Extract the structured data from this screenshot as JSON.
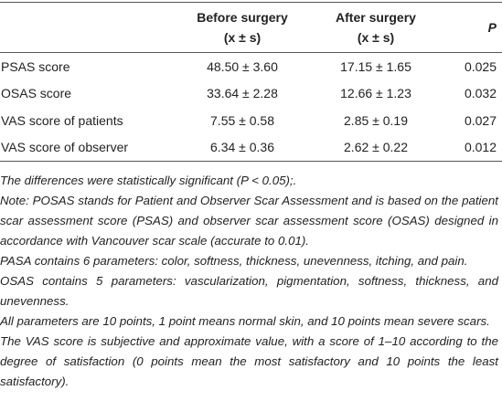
{
  "table": {
    "columns": [
      "",
      [
        "Before surgery",
        "(x ± s)"
      ],
      [
        "After surgery",
        "(x ± s)"
      ],
      "P"
    ],
    "rows": [
      [
        "PSAS score",
        "48.50 ± 3.60",
        "17.15 ± 1.65",
        "0.025"
      ],
      [
        "OSAS score",
        "33.64 ± 2.28",
        "12.66 ± 1.23",
        "0.032"
      ],
      [
        "VAS score of patients",
        "7.55 ± 0.58",
        "2.85 ± 0.19",
        "0.027"
      ],
      [
        "VAS score of observer",
        "6.34 ± 0.36",
        "2.62 ± 0.22",
        "0.012"
      ]
    ]
  },
  "notes": [
    "The differences were statistically significant (P < 0.05);.",
    "Note: POSAS stands for Patient and Observer Scar Assessment and is based on the patient scar assessment score (PSAS) and observer scar assessment score (OSAS) designed in accordance with Vancouver scar scale (accurate to 0.01).",
    "PASA contains 6 parameters: color, softness, thickness, unevenness, itching, and pain.",
    "OSAS contains 5 parameters: vascularization, pigmentation, softness, thickness, and unevenness.",
    "All parameters are 10 points, 1 point means normal skin, and 10 points mean severe scars.",
    "The VAS score is subjective and approximate value, with a score of 1–10 according to the degree of satisfaction (0 points mean the most satisfactory and 10 points the least satisfactory)."
  ]
}
